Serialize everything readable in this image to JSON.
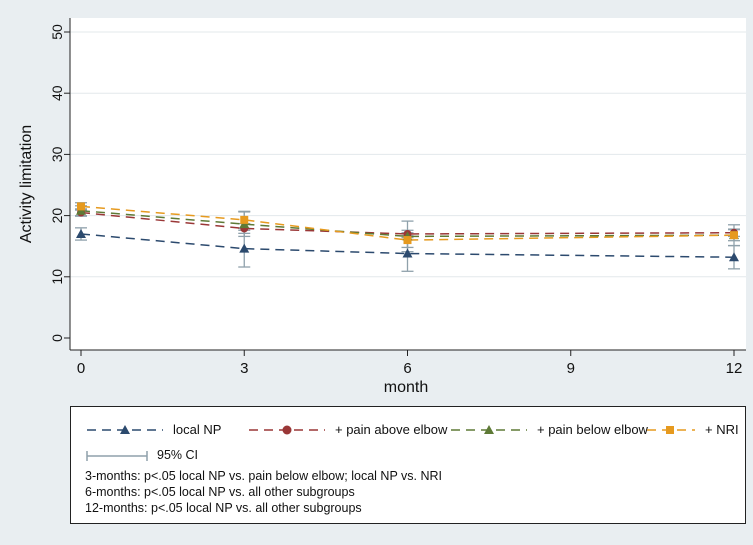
{
  "chart_data": {
    "type": "line",
    "title": "",
    "xlabel": "month",
    "ylabel": "Activity limitation",
    "x": [
      0,
      3,
      6,
      12
    ],
    "xticks": [
      "0",
      "3",
      "6",
      "9",
      "12"
    ],
    "yticks": [
      "0",
      "10",
      "20",
      "30",
      "40",
      "50"
    ],
    "xlim": [
      0,
      12
    ],
    "ylim": [
      0,
      50
    ],
    "grid": "horizontal",
    "legend_position": "bottom",
    "series": [
      {
        "name": "local NP",
        "color": "#2c4a6e",
        "marker": "triangle",
        "values": [
          17.0,
          14.6,
          13.8,
          13.2
        ],
        "ci_low": [
          16.0,
          11.6,
          10.9,
          11.3
        ],
        "ci_high": [
          18.0,
          17.6,
          16.7,
          15.1
        ]
      },
      {
        "name": "+ pain above elbow",
        "color": "#9a3737",
        "marker": "circle",
        "values": [
          20.5,
          17.9,
          17.0,
          17.2
        ],
        "ci_low": [
          19.9,
          17.1,
          16.4,
          16.6
        ],
        "ci_high": [
          21.1,
          18.7,
          17.6,
          17.8
        ]
      },
      {
        "name": "+ pain below elbow",
        "color": "#5e7a36",
        "marker": "triangle",
        "values": [
          20.8,
          18.6,
          16.6,
          16.8
        ],
        "ci_low": [
          20.0,
          16.6,
          14.1,
          15.1
        ],
        "ci_high": [
          21.6,
          20.6,
          19.1,
          18.5
        ]
      },
      {
        "name": "+ NRI",
        "color": "#e69a1f",
        "marker": "square",
        "values": [
          21.5,
          19.3,
          16.0,
          16.8
        ],
        "ci_low": [
          20.9,
          17.9,
          14.8,
          15.9
        ],
        "ci_high": [
          22.1,
          20.7,
          17.2,
          17.7
        ]
      }
    ],
    "ci_label": "95% CI",
    "ci_color": "#8fa1ab",
    "notes": [
      "3-months: p<.05 local NP vs. pain below elbow; local NP vs. NRI",
      "6-months: p<.05 local NP vs. all other subgroups",
      "12-months: p<.05 local NP vs. all other subgroups"
    ]
  }
}
